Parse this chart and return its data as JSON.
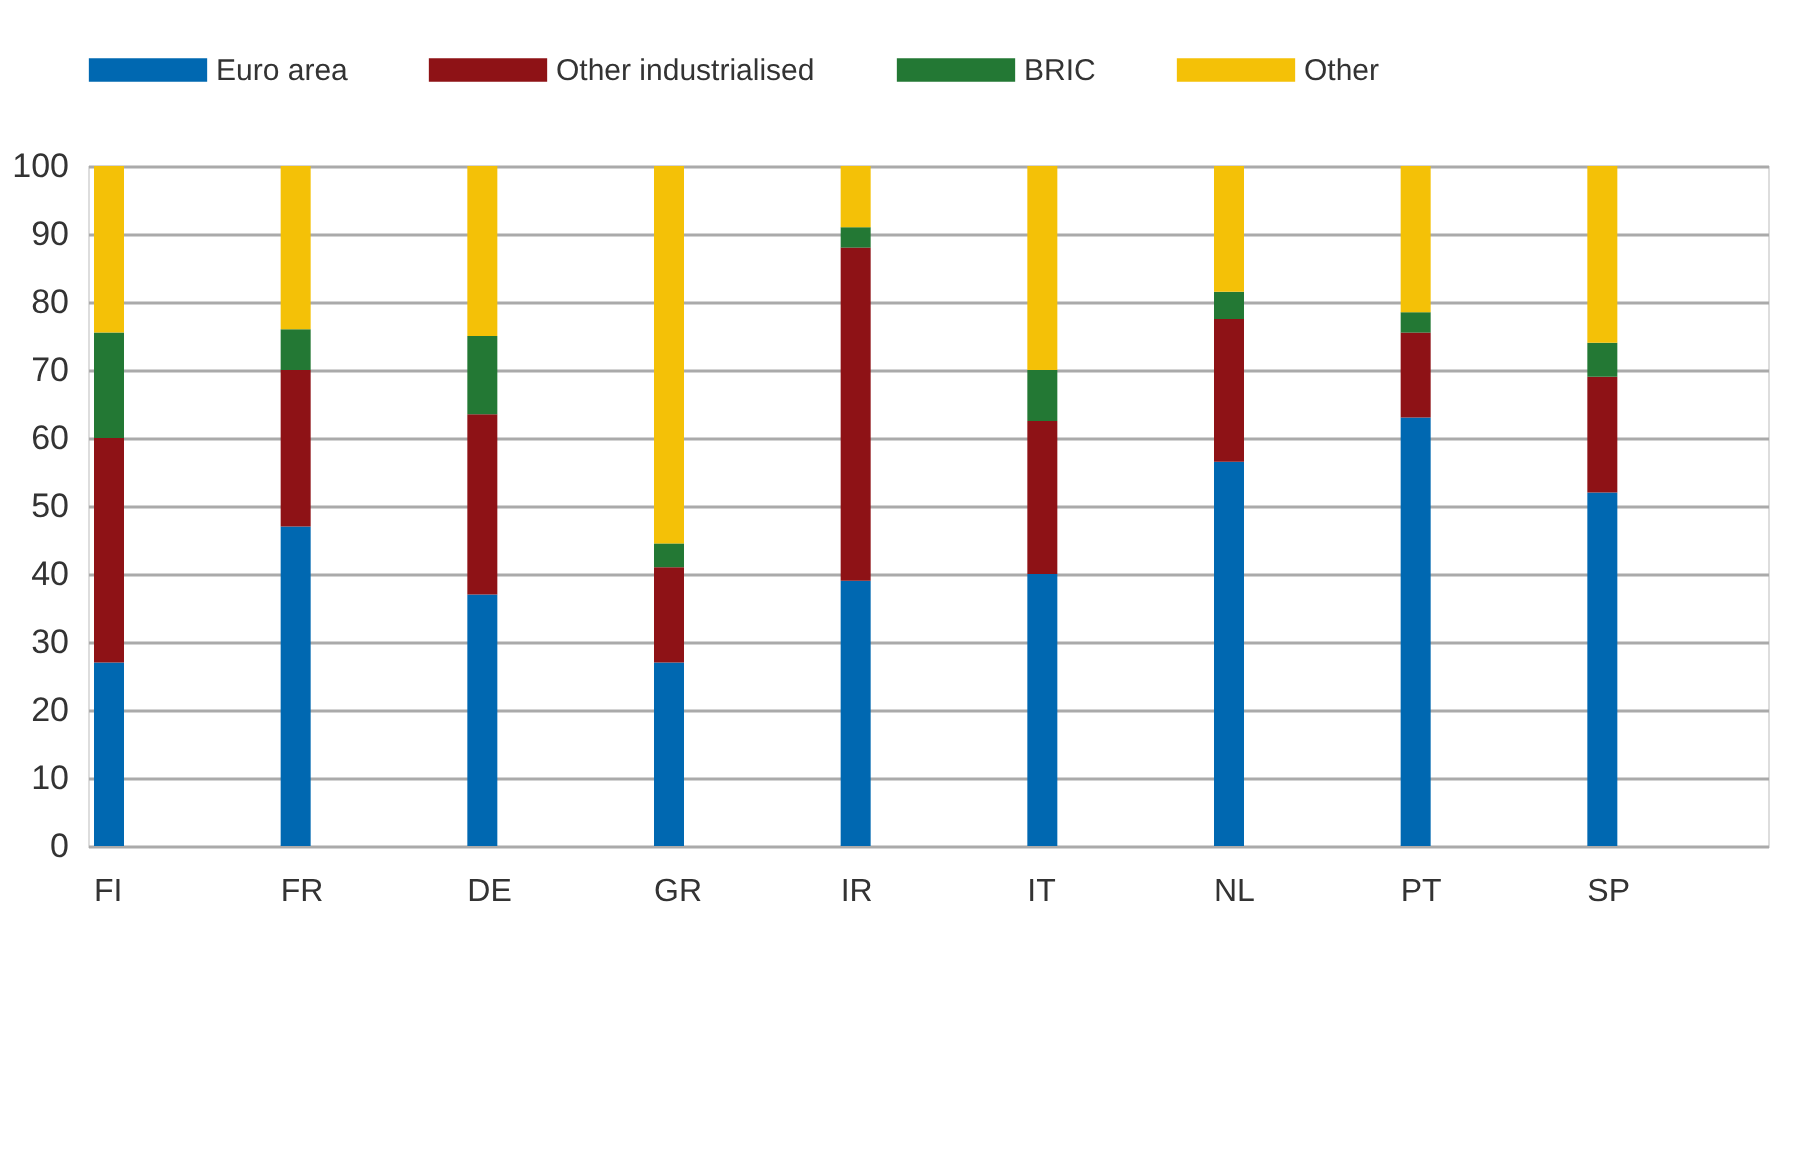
{
  "chart_data": {
    "type": "bar",
    "stacked": true,
    "categories": [
      "FI",
      "FR",
      "DE",
      "GR",
      "IR",
      "IT",
      "NL",
      "PT",
      "SP"
    ],
    "series": [
      {
        "name": "Euro area",
        "color": "#0068b1",
        "values": [
          27,
          47,
          37,
          27,
          39,
          40,
          56.5,
          63,
          52
        ]
      },
      {
        "name": "Other industrialised",
        "color": "#8e1216",
        "values": [
          33,
          23,
          26.5,
          14,
          49,
          22.5,
          21,
          12.5,
          17
        ]
      },
      {
        "name": "BRIC",
        "color": "#237834",
        "values": [
          15.5,
          6,
          11.5,
          3.5,
          3,
          7.5,
          4,
          3,
          5
        ]
      },
      {
        "name": "Other",
        "color": "#f4c107",
        "values": [
          24.5,
          24,
          25,
          55.5,
          9,
          30,
          18.5,
          21.5,
          26
        ]
      }
    ],
    "ylim": [
      0,
      100
    ],
    "yticks": [
      0,
      10,
      20,
      30,
      40,
      50,
      60,
      70,
      80,
      90,
      100
    ],
    "grid": "y",
    "legend": "top left"
  }
}
